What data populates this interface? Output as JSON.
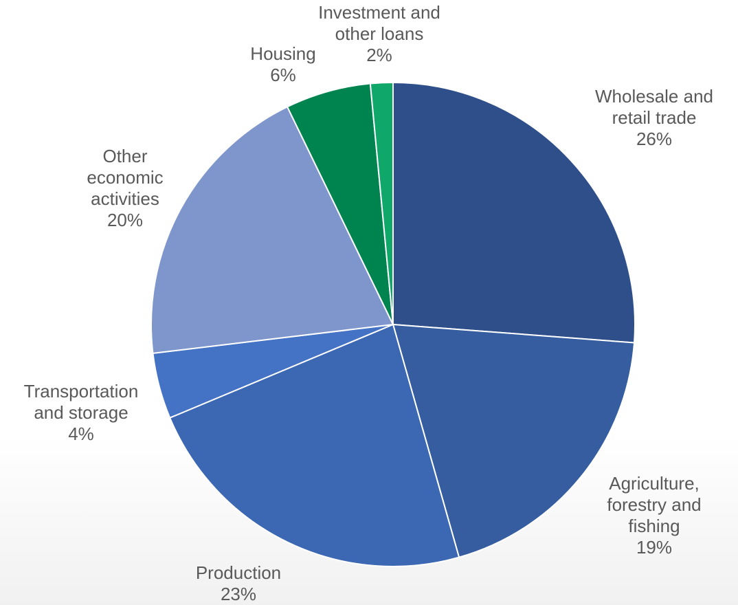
{
  "chart_data": {
    "type": "pie",
    "slices": [
      {
        "label_lines": [
          "Wholesale and",
          "retail trade"
        ],
        "pct_text": "26%",
        "value": 26.2,
        "color": "#2f4f8a"
      },
      {
        "label_lines": [
          "Agriculture,",
          "forestry and",
          "fishing"
        ],
        "pct_text": "19%",
        "value": 19.4,
        "color": "#355da0"
      },
      {
        "label_lines": [
          "Production"
        ],
        "pct_text": "23%",
        "value": 23.1,
        "color": "#3c68b3"
      },
      {
        "label_lines": [
          "Transportation",
          "and storage"
        ],
        "pct_text": "4%",
        "value": 4.4,
        "color": "#4472c4"
      },
      {
        "label_lines": [
          "Other",
          "economic",
          "activities"
        ],
        "pct_text": "20%",
        "value": 19.7,
        "color": "#7f96cd"
      },
      {
        "label_lines": [
          "Housing"
        ],
        "pct_text": "6%",
        "value": 5.7,
        "color": "#00844f"
      },
      {
        "label_lines": [
          "Investment and",
          "other loans"
        ],
        "pct_text": "2%",
        "value": 1.5,
        "color": "#10a86a"
      }
    ]
  }
}
